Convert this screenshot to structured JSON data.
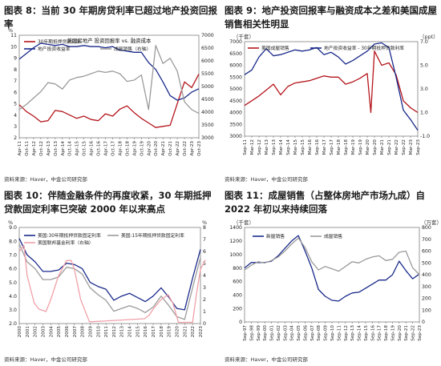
{
  "panels": [
    {
      "id": "p8",
      "title": "图表 8：当前 30 年期房贷利率已超过地产投资回报率",
      "source": "资料来源：Haver，中金公司研究部"
    },
    {
      "id": "p9",
      "title": "图表 9：地产投资回报率与融资成本之差和美国成屋销售相关性明显",
      "source": "资料来源：Haver，中金公司研究部"
    },
    {
      "id": "p10",
      "title": "图表 10：伴随金融条件的再度收紧，30 年期抵押贷款固定利率已突破 2000 年以来高点",
      "source": "资料来源：Haver，中金公司研究部"
    },
    {
      "id": "p11",
      "title": "图表 11：成屋销售（占整体房地产市场九成）自 2022 年初以来持续回落",
      "source": "资料来源：Haver，中金公司研究部"
    }
  ],
  "chart_data": [
    {
      "type": "line",
      "title": "美国房地产 投资回报率 vs. 融资成本",
      "left_unit": "%",
      "y_ticks": [
        2,
        3,
        4,
        5,
        6,
        7,
        8,
        9,
        10,
        11
      ],
      "ylim": [
        2,
        11
      ],
      "y2_ticks": [
        3000,
        3500,
        4000,
        4500,
        5000,
        5500,
        6000,
        6500,
        7000
      ],
      "y2lim": [
        3000,
        7000
      ],
      "x_ticks": [
        "Apr-11",
        "Oct-11",
        "Apr-12",
        "Oct-12",
        "Apr-13",
        "Oct-13",
        "Apr-14",
        "Oct-14",
        "Apr-15",
        "Oct-15",
        "Apr-16",
        "Oct-16",
        "Apr-17",
        "Oct-17",
        "Apr-18",
        "Oct-18",
        "Apr-19",
        "Oct-19",
        "Apr-20",
        "Oct-20",
        "Apr-21",
        "Oct-21",
        "Apr-22",
        "Oct-22",
        "Apr-23",
        "Oct-23"
      ],
      "legend": "top",
      "series": [
        {
          "name": "30年期抵押贷款利率",
          "color": "#b4151b",
          "axis": "left",
          "x": [
            0,
            1,
            2,
            3,
            4,
            5,
            6,
            7,
            8,
            9,
            10,
            11,
            12,
            13,
            14,
            15,
            16,
            17,
            18,
            19,
            20,
            21,
            22,
            23,
            24,
            25
          ],
          "values": [
            4.9,
            4.3,
            3.9,
            3.4,
            3.5,
            4.4,
            4.3,
            4.0,
            3.7,
            3.9,
            3.6,
            3.5,
            4.1,
            3.9,
            4.5,
            4.8,
            4.2,
            3.7,
            3.3,
            2.9,
            3.0,
            3.1,
            5.0,
            6.9,
            6.4,
            7.6
          ]
        },
        {
          "name": "地产投资收益率",
          "color": "#1a2a8a",
          "axis": "left",
          "x": [
            0,
            1,
            2,
            3,
            4,
            5,
            6,
            7,
            8,
            9,
            10,
            11,
            12,
            13,
            14,
            15,
            16,
            17,
            18,
            19,
            20,
            21,
            22,
            23,
            24,
            25
          ],
          "values": [
            8.9,
            9.4,
            9.9,
            10.3,
            10.2,
            10.1,
            10.2,
            10.0,
            10.0,
            10.1,
            10.0,
            10.0,
            9.9,
            10.0,
            9.7,
            9.6,
            9.5,
            9.5,
            8.6,
            8.0,
            6.9,
            5.7,
            5.3,
            5.5,
            6.0,
            6.3
          ]
        },
        {
          "name": "成屋销售（右轴）",
          "color": "#9b9b9b",
          "axis": "right",
          "x": [
            0,
            1,
            2,
            3,
            4,
            5,
            6,
            7,
            8,
            9,
            10,
            11,
            12,
            13,
            14,
            15,
            16,
            17,
            18,
            19,
            20,
            21,
            22,
            23,
            24,
            25
          ],
          "values": [
            4100,
            4300,
            4550,
            4800,
            5150,
            5100,
            4900,
            5250,
            5350,
            5400,
            5500,
            5600,
            5550,
            5600,
            5500,
            5200,
            5250,
            5450,
            4100,
            6600,
            5900,
            6100,
            5600,
            4400,
            4100,
            3950
          ]
        }
      ]
    },
    {
      "type": "line",
      "title": "",
      "left_unit": "（千套）",
      "right_unit": "（ppt）",
      "y_ticks": [
        3000,
        3500,
        4000,
        4500,
        5000,
        5500,
        6000,
        6500,
        7000
      ],
      "ylim": [
        3000,
        7000
      ],
      "y2_ticks": [
        -1.0,
        1.0,
        3.0,
        5.0,
        7.0
      ],
      "y2lim": [
        -1.0,
        7.0
      ],
      "x_ticks": [
        "Sep-11",
        "Mar-12",
        "Sep-12",
        "Mar-13",
        "Sep-13",
        "Mar-14",
        "Sep-14",
        "Mar-15",
        "Sep-15",
        "Mar-16",
        "Sep-16",
        "Mar-17",
        "Sep-17",
        "Mar-18",
        "Sep-18",
        "Mar-19",
        "Sep-19",
        "Mar-20",
        "Sep-20",
        "Mar-21",
        "Sep-21",
        "Mar-22",
        "Sep-22",
        "Mar-23",
        "Sep-23"
      ],
      "legend": "top",
      "series": [
        {
          "name": "美国成屋销售",
          "color": "#b4151b",
          "axis": "left",
          "x": [
            0,
            1,
            2,
            3,
            4,
            5,
            6,
            7,
            8,
            9,
            10,
            11,
            12,
            13,
            14,
            15,
            16,
            17,
            17.5,
            18,
            19,
            20,
            21,
            22,
            23,
            24
          ],
          "values": [
            4300,
            4500,
            4700,
            4950,
            5200,
            4750,
            5100,
            5250,
            5300,
            5350,
            5450,
            5550,
            5500,
            5500,
            5200,
            5300,
            5450,
            5650,
            4000,
            6600,
            6000,
            6100,
            5600,
            4500,
            4200,
            4000
          ]
        },
        {
          "name": "地产投资收益率 - 30年期抵押贷款利率",
          "color": "#1a2a8a",
          "axis": "right",
          "x": [
            0,
            1,
            2,
            3,
            4,
            5,
            6,
            7,
            8,
            9,
            10,
            11,
            12,
            13,
            14,
            15,
            16,
            17,
            18,
            19,
            20,
            21,
            22,
            23,
            24
          ],
          "values": [
            4.2,
            4.6,
            5.7,
            6.4,
            5.8,
            5.9,
            6.1,
            6.3,
            6.2,
            6.3,
            6.5,
            5.9,
            6.1,
            5.7,
            5.1,
            5.4,
            5.8,
            6.2,
            6.8,
            6.9,
            6.5,
            4.0,
            1.2,
            0.4,
            -0.5
          ]
        }
      ]
    },
    {
      "type": "line",
      "title": "",
      "left_unit": "%",
      "right_unit": "%",
      "y_ticks": [
        2.0,
        3.0,
        4.0,
        5.0,
        6.0,
        7.0,
        8.0,
        9.0
      ],
      "ylim": [
        2.0,
        9.0
      ],
      "y2_ticks": [
        0,
        1,
        2,
        3,
        4,
        5,
        6,
        7,
        8
      ],
      "y2lim": [
        0,
        8
      ],
      "x_ticks": [
        "2000",
        "2001",
        "2002",
        "2003",
        "2004",
        "2005",
        "2006",
        "2007",
        "2008",
        "2009",
        "2010",
        "2011",
        "2012",
        "2013",
        "2014",
        "2015",
        "2016",
        "2017",
        "2018",
        "2019",
        "2020",
        "2021",
        "2022",
        "2023"
      ],
      "legend": "top",
      "series": [
        {
          "name": "美国:30年期抵押贷款固定利率",
          "color": "#1a2a8a",
          "axis": "left",
          "x": [
            0,
            1,
            2,
            3,
            4,
            5,
            6,
            7,
            8,
            9,
            10,
            11,
            12,
            13,
            14,
            15,
            16,
            17,
            18,
            19,
            20,
            21,
            22,
            23
          ],
          "values": [
            8.2,
            7.0,
            6.5,
            5.8,
            5.8,
            5.9,
            6.4,
            6.3,
            6.0,
            5.0,
            4.7,
            4.5,
            3.7,
            4.0,
            4.2,
            3.9,
            3.6,
            4.0,
            4.6,
            3.9,
            3.1,
            3.0,
            5.3,
            7.4
          ]
        },
        {
          "name": "美国:15年期抵押贷款固定利率",
          "color": "#9b9b9b",
          "axis": "left",
          "x": [
            0,
            1,
            2,
            3,
            4,
            5,
            6,
            7,
            8,
            9,
            10,
            11,
            12,
            13,
            14,
            15,
            16,
            17,
            18,
            19,
            20,
            21,
            22,
            23
          ],
          "values": [
            7.8,
            6.5,
            6.0,
            5.2,
            5.2,
            5.4,
            6.1,
            6.0,
            5.6,
            4.6,
            4.1,
            3.7,
            2.9,
            3.1,
            3.3,
            3.1,
            2.8,
            3.2,
            4.0,
            3.3,
            2.5,
            2.3,
            4.6,
            6.8
          ]
        },
        {
          "name": "美国联邦基金利率（右轴）",
          "color": "#f0a0a8",
          "axis": "right",
          "x": [
            0,
            0.6,
            1,
            1.9,
            2.5,
            3.4,
            4,
            5,
            6,
            6.6,
            7,
            7.8,
            8.9,
            9,
            15.9,
            16.5,
            17,
            18,
            18.9,
            19.5,
            20.2,
            22,
            22.5,
            23,
            23.6
          ],
          "values": [
            6.0,
            6.5,
            4.0,
            1.7,
            1.2,
            1.0,
            2.0,
            4.0,
            5.25,
            5.25,
            4.5,
            2.0,
            0.15,
            0.15,
            0.4,
            0.7,
            1.2,
            2.0,
            2.4,
            1.7,
            0.1,
            0.1,
            2.5,
            4.5,
            5.3
          ]
        }
      ]
    },
    {
      "type": "line",
      "title": "",
      "left_unit": "（千套）",
      "right_unit": "（万套）",
      "y_ticks": [
        0,
        200,
        400,
        600,
        800,
        1000,
        1200,
        1400
      ],
      "ylim": [
        0,
        1400
      ],
      "y2_ticks": [
        0,
        100,
        200,
        300,
        400,
        500,
        600,
        700,
        800
      ],
      "y2lim": [
        0,
        800
      ],
      "x_ticks": [
        "Sep-97",
        "Sep-98",
        "Sep-99",
        "Sep-00",
        "Sep-01",
        "Sep-02",
        "Sep-03",
        "Sep-04",
        "Sep-05",
        "Sep-06",
        "Sep-07",
        "Sep-08",
        "Sep-09",
        "Sep-10",
        "Sep-11",
        "Sep-12",
        "Sep-13",
        "Sep-14",
        "Sep-15",
        "Sep-16",
        "Sep-17",
        "Sep-18",
        "Sep-19",
        "Sep-20",
        "Sep-21",
        "Sep-22",
        "Sep-23"
      ],
      "legend": "top",
      "series": [
        {
          "name": "新屋销售",
          "color": "#1a2a8a",
          "axis": "left",
          "x": [
            0,
            1,
            2,
            3,
            4,
            5,
            6,
            7,
            8,
            9,
            10,
            11,
            12,
            13,
            14,
            15,
            16,
            17,
            18,
            19,
            20,
            21,
            22,
            23,
            24,
            25,
            26
          ],
          "values": [
            800,
            880,
            880,
            880,
            900,
            980,
            1090,
            1200,
            1280,
            1050,
            800,
            480,
            380,
            320,
            310,
            380,
            430,
            440,
            500,
            560,
            620,
            620,
            700,
            900,
            760,
            640,
            710
          ]
        },
        {
          "name": "成屋销售",
          "color": "#9b9b9b",
          "axis": "right",
          "x": [
            0,
            1,
            2,
            3,
            4,
            5,
            6,
            7,
            8,
            9,
            10,
            11,
            12,
            13,
            14,
            15,
            16,
            17,
            18,
            19,
            20,
            21,
            22,
            23,
            24,
            25,
            26
          ],
          "values": [
            440,
            480,
            510,
            500,
            520,
            550,
            600,
            660,
            710,
            630,
            510,
            440,
            470,
            450,
            430,
            470,
            510,
            500,
            530,
            550,
            560,
            520,
            530,
            590,
            600,
            460,
            400
          ]
        }
      ]
    }
  ]
}
